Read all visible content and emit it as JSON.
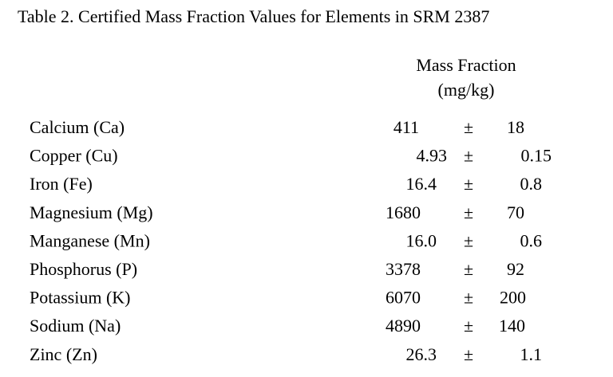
{
  "table": {
    "title": "Table 2.  Certified Mass Fraction Values for Elements in SRM 2387",
    "header": [
      "Mass Fraction",
      "(mg/kg)"
    ],
    "rows": [
      [
        "Calcium (Ca)",
        "411",
        "±",
        "18"
      ],
      [
        "Copper (Cu)",
        "4.93",
        "±",
        "0.15"
      ],
      [
        "Iron (Fe)",
        "16.4",
        "±",
        "0.8"
      ],
      [
        "Magnesium (Mg)",
        "1680",
        "±",
        "70"
      ],
      [
        "Manganese (Mn)",
        "16.0",
        "±",
        "0.6"
      ],
      [
        "Phosphorus (P)",
        "3378",
        "±",
        "92"
      ],
      [
        "Potassium (K)",
        "6070",
        "±",
        "200"
      ],
      [
        "Sodium (Na)",
        "4890",
        "±",
        "140"
      ],
      [
        "Zinc (Zn)",
        "26.3",
        "±",
        "1.1"
      ]
    ]
  }
}
